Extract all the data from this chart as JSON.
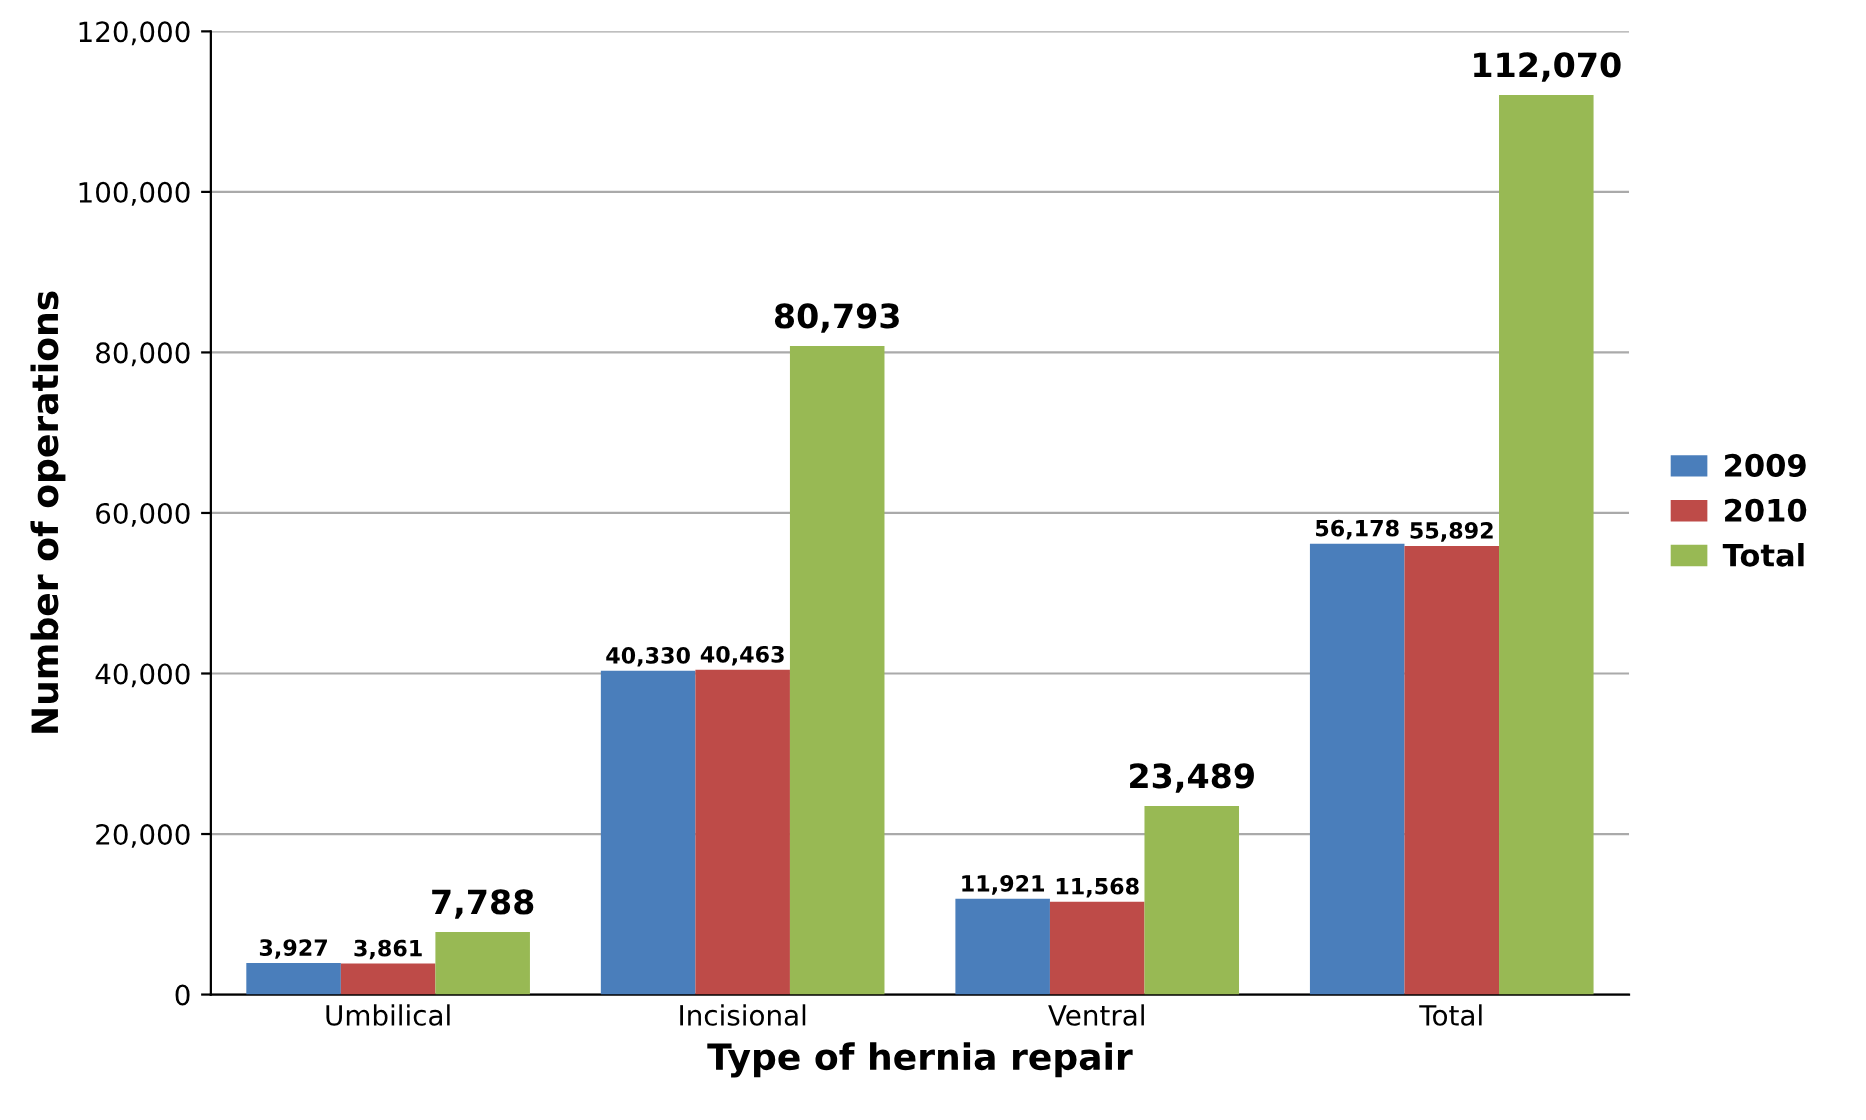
{
  "chart_data": {
    "type": "bar",
    "xlabel": "Type of hernia repair",
    "ylabel": "Number of operations",
    "categories": [
      "Umbilical",
      "Incisional",
      "Ventral",
      "Total"
    ],
    "series": [
      {
        "name": "2009",
        "color": "#4a7ebb",
        "values": [
          3927,
          40330,
          11921,
          56178
        ],
        "value_labels": [
          "3,927",
          "40,330",
          "11,921",
          "56,178"
        ]
      },
      {
        "name": "2010",
        "color": "#be4b48",
        "values": [
          3861,
          40463,
          11568,
          55892
        ],
        "value_labels": [
          "3,861",
          "40,463",
          "11,568",
          "55,892"
        ]
      },
      {
        "name": "Total",
        "color": "#98b954",
        "values": [
          7788,
          80793,
          23489,
          112070
        ],
        "value_labels": [
          "7,788",
          "80,793",
          "23,489",
          "112,070"
        ]
      }
    ],
    "ylim": [
      0,
      120000
    ],
    "yticks": [
      {
        "value": 0,
        "label": "0"
      },
      {
        "value": 20000,
        "label": "20,000"
      },
      {
        "value": 40000,
        "label": "40,000"
      },
      {
        "value": 60000,
        "label": "60,000"
      },
      {
        "value": 80000,
        "label": "80,000"
      },
      {
        "value": 100000,
        "label": "100,000"
      },
      {
        "value": 120000,
        "label": "120,000"
      }
    ],
    "grid": "y",
    "legend": "right"
  }
}
